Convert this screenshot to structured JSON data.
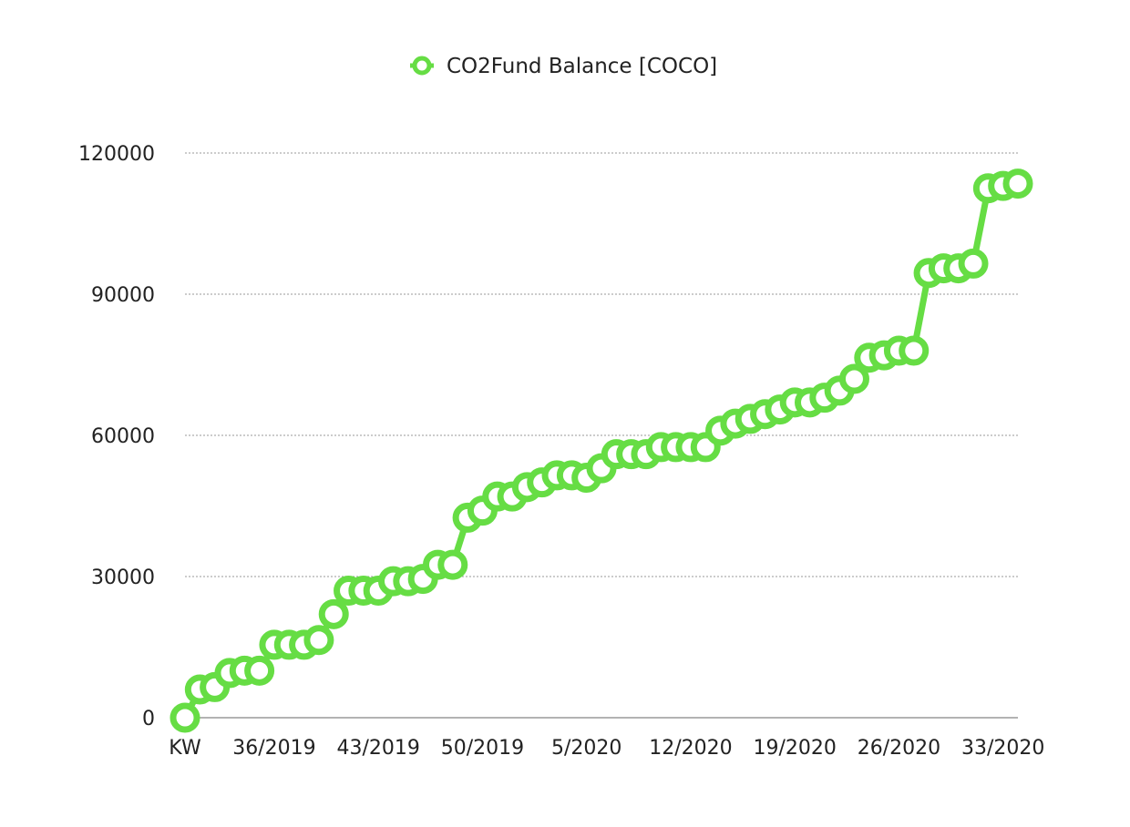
{
  "chart_data": {
    "type": "line",
    "legend": {
      "position": "top-center"
    },
    "series": [
      {
        "name": "CO2Fund Balance [COCO]",
        "color": "#66dd44",
        "values": [
          0,
          6000,
          6500,
          9500,
          10000,
          10000,
          15500,
          15500,
          15500,
          16500,
          22000,
          27000,
          27000,
          27000,
          29000,
          29000,
          29500,
          32500,
          32500,
          42500,
          44000,
          47000,
          47000,
          49000,
          50000,
          51500,
          51500,
          51000,
          53000,
          56000,
          56000,
          56000,
          57500,
          57500,
          57500,
          57500,
          61000,
          62500,
          63500,
          64500,
          65500,
          67000,
          67000,
          68000,
          69500,
          72000,
          76500,
          77000,
          78000,
          78000,
          94500,
          95500,
          95500,
          96500,
          112500,
          113000,
          113500
        ]
      }
    ],
    "x_tick_labels": [
      {
        "index": 0,
        "label": "KW"
      },
      {
        "index": 6,
        "label": "36/2019"
      },
      {
        "index": 13,
        "label": "43/2019"
      },
      {
        "index": 20,
        "label": "50/2019"
      },
      {
        "index": 27,
        "label": "5/2020"
      },
      {
        "index": 34,
        "label": "12/2020"
      },
      {
        "index": 41,
        "label": "19/2020"
      },
      {
        "index": 48,
        "label": "26/2020"
      },
      {
        "index": 55,
        "label": "33/2020"
      }
    ],
    "yticks": [
      0,
      30000,
      60000,
      90000,
      120000
    ],
    "ylim": [
      0,
      120000
    ],
    "grid": true,
    "title": "",
    "xlabel": "",
    "ylabel": ""
  }
}
